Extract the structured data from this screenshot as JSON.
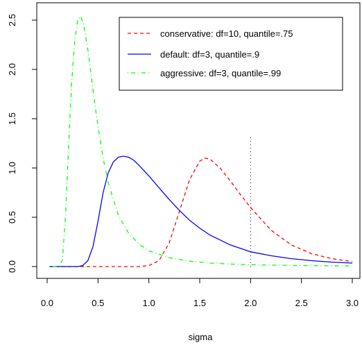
{
  "chart_data": {
    "type": "line",
    "title": "",
    "xlabel": "sigma",
    "ylabel": "",
    "xlim": [
      0.0,
      3.0
    ],
    "ylim": [
      0.0,
      2.55
    ],
    "x_ticks": [
      "0.0",
      "0.5",
      "1.0",
      "1.5",
      "2.0",
      "2.5",
      "3.0"
    ],
    "y_ticks": [
      "0.0",
      "0.5",
      "1.0",
      "1.5",
      "2.0",
      "2.5"
    ],
    "grid": false,
    "legend_position": "top-right",
    "series": [
      {
        "name": "conservative: df=10, quantile=.75",
        "color": "#ff0000",
        "dash": "dashed",
        "x": [
          0.02,
          0.5,
          0.9,
          1.0,
          1.1,
          1.2,
          1.3,
          1.4,
          1.5,
          1.55,
          1.6,
          1.7,
          1.8,
          1.9,
          2.0,
          2.2,
          2.4,
          2.6,
          2.8,
          3.0
        ],
        "y": [
          0.0,
          0.0,
          0.0,
          0.01,
          0.06,
          0.24,
          0.56,
          0.88,
          1.07,
          1.1,
          1.09,
          1.0,
          0.87,
          0.73,
          0.6,
          0.37,
          0.22,
          0.13,
          0.08,
          0.05
        ]
      },
      {
        "name": "default: df=3, quantile=.9",
        "color": "#0000ff",
        "dash": "solid",
        "x": [
          0.02,
          0.3,
          0.35,
          0.4,
          0.45,
          0.5,
          0.55,
          0.6,
          0.65,
          0.7,
          0.75,
          0.8,
          0.85,
          0.9,
          1.0,
          1.1,
          1.2,
          1.3,
          1.4,
          1.5,
          1.6,
          1.8,
          2.0,
          2.2,
          2.4,
          2.6,
          2.8,
          3.0
        ],
        "y": [
          0.0,
          0.0,
          0.01,
          0.06,
          0.2,
          0.46,
          0.75,
          0.95,
          1.06,
          1.11,
          1.12,
          1.11,
          1.08,
          1.03,
          0.92,
          0.8,
          0.68,
          0.57,
          0.47,
          0.39,
          0.32,
          0.22,
          0.15,
          0.11,
          0.08,
          0.06,
          0.045,
          0.035
        ]
      },
      {
        "name": "aggressive: df=3, quantile=.99",
        "color": "#00ff00",
        "dash": "dotdash",
        "x": [
          0.02,
          0.12,
          0.15,
          0.18,
          0.21,
          0.24,
          0.27,
          0.3,
          0.33,
          0.36,
          0.4,
          0.45,
          0.5,
          0.55,
          0.6,
          0.7,
          0.8,
          0.9,
          1.0,
          1.2,
          1.4,
          1.6,
          1.8,
          2.0,
          2.5,
          3.0
        ],
        "y": [
          0.0,
          0.0,
          0.07,
          0.5,
          1.2,
          1.85,
          2.28,
          2.5,
          2.54,
          2.45,
          2.2,
          1.8,
          1.42,
          1.1,
          0.85,
          0.52,
          0.34,
          0.23,
          0.16,
          0.09,
          0.055,
          0.035,
          0.025,
          0.018,
          0.01,
          0.006
        ]
      }
    ],
    "reference_line": {
      "orientation": "vertical",
      "x": 2.0,
      "y_range": [
        0.0,
        1.33
      ],
      "color": "#000000",
      "dash": "dotted"
    }
  }
}
